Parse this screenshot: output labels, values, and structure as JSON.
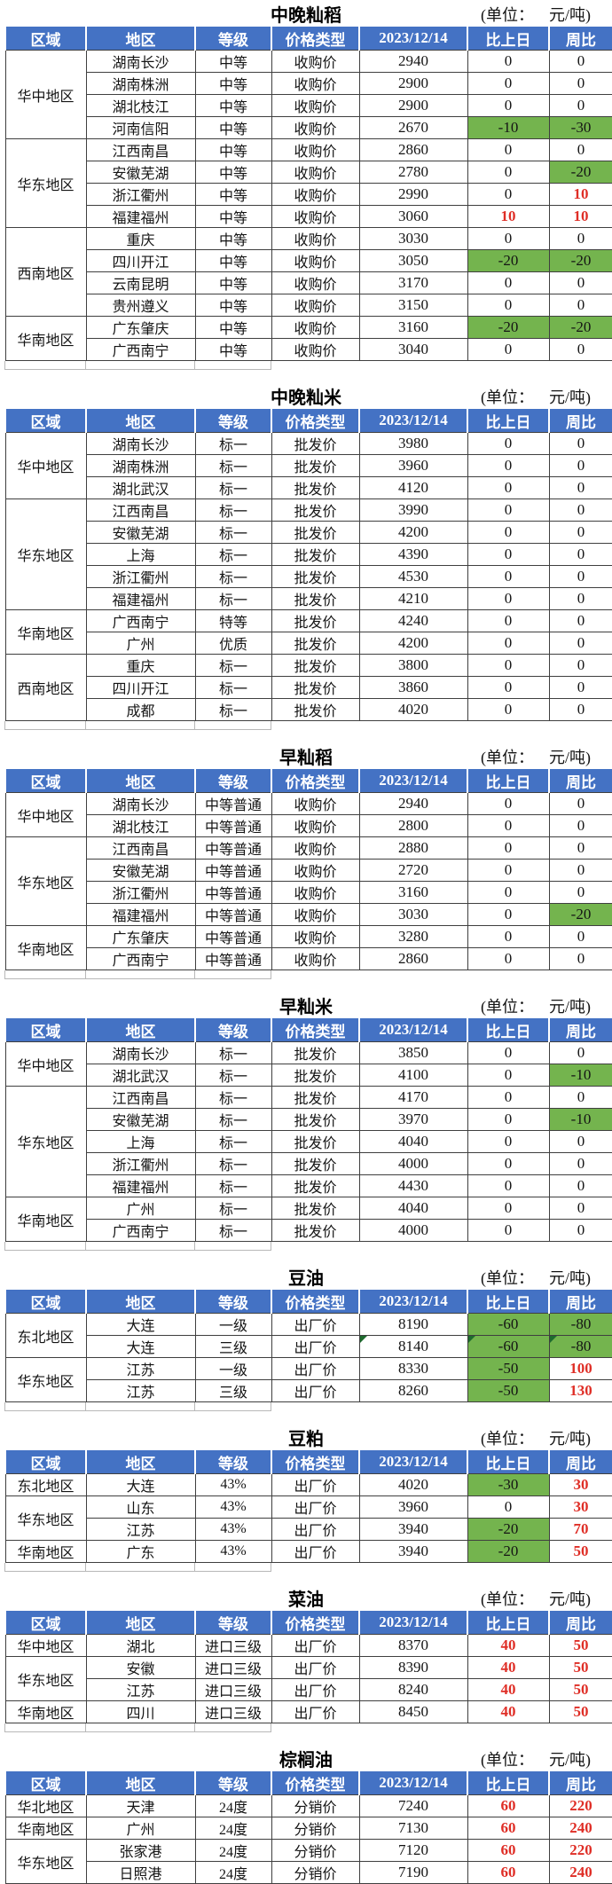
{
  "unit": {
    "prefix": "(单位：",
    "suffix": "元/吨)"
  },
  "columns": [
    "区域",
    "地区",
    "等级",
    "价格类型",
    "2023/12/14",
    "比上日",
    "周比"
  ],
  "colors": {
    "header_bg": "#4472c4",
    "header_text": "#ffffff",
    "green_cell_bg": "#74b44e",
    "red_text": "#df2e26",
    "grid_line": "#3f3f3f",
    "comment_mark": "#1e6b2e"
  },
  "tables": [
    {
      "title": "中晚籼稻",
      "groups": [
        {
          "region": "华中地区",
          "rows": [
            {
              "area": "湖南长沙",
              "grade": "中等",
              "type": "收购价",
              "price": "2940",
              "day": "0",
              "week": "0"
            },
            {
              "area": "湖南株洲",
              "grade": "中等",
              "type": "收购价",
              "price": "2900",
              "day": "0",
              "week": "0"
            },
            {
              "area": "湖北枝江",
              "grade": "中等",
              "type": "收购价",
              "price": "2900",
              "day": "0",
              "week": "0"
            },
            {
              "area": "河南信阳",
              "grade": "中等",
              "type": "收购价",
              "price": "2670",
              "day": "-10",
              "day_style": "green",
              "week": "-30",
              "week_style": "green"
            }
          ]
        },
        {
          "region": "华东地区",
          "rows": [
            {
              "area": "江西南昌",
              "grade": "中等",
              "type": "收购价",
              "price": "2860",
              "day": "0",
              "week": "0"
            },
            {
              "area": "安徽芜湖",
              "grade": "中等",
              "type": "收购价",
              "price": "2780",
              "day": "0",
              "week": "-20",
              "week_style": "green"
            },
            {
              "area": "浙江衢州",
              "grade": "中等",
              "type": "收购价",
              "price": "2990",
              "day": "0",
              "week": "10",
              "week_style": "red"
            },
            {
              "area": "福建福州",
              "grade": "中等",
              "type": "收购价",
              "price": "3060",
              "day": "10",
              "day_style": "red",
              "week": "10",
              "week_style": "red"
            }
          ]
        },
        {
          "region": "西南地区",
          "rows": [
            {
              "area": "重庆",
              "grade": "中等",
              "type": "收购价",
              "price": "3030",
              "day": "0",
              "week": "0"
            },
            {
              "area": "四川开江",
              "grade": "中等",
              "type": "收购价",
              "price": "3050",
              "day": "-20",
              "day_style": "green",
              "week": "-20",
              "week_style": "green"
            },
            {
              "area": "云南昆明",
              "grade": "中等",
              "type": "收购价",
              "price": "3170",
              "day": "0",
              "week": "0"
            },
            {
              "area": "贵州遵义",
              "grade": "中等",
              "type": "收购价",
              "price": "3150",
              "day": "0",
              "week": "0"
            }
          ]
        },
        {
          "region": "华南地区",
          "rows": [
            {
              "area": "广东肇庆",
              "grade": "中等",
              "type": "收购价",
              "price": "3160",
              "day": "-20",
              "day_style": "green",
              "week": "-20",
              "week_style": "green"
            },
            {
              "area": "广西南宁",
              "grade": "中等",
              "type": "收购价",
              "price": "3040",
              "day": "0",
              "week": "0"
            }
          ]
        }
      ]
    },
    {
      "title": "中晚籼米",
      "groups": [
        {
          "region": "华中地区",
          "rows": [
            {
              "area": "湖南长沙",
              "grade": "标一",
              "type": "批发价",
              "price": "3980",
              "day": "0",
              "week": "0"
            },
            {
              "area": "湖南株洲",
              "grade": "标一",
              "type": "批发价",
              "price": "3960",
              "day": "0",
              "week": "0"
            },
            {
              "area": "湖北武汉",
              "grade": "标一",
              "type": "批发价",
              "price": "4120",
              "day": "0",
              "week": "0"
            }
          ]
        },
        {
          "region": "华东地区",
          "rows": [
            {
              "area": "江西南昌",
              "grade": "标一",
              "type": "批发价",
              "price": "3990",
              "day": "0",
              "week": "0"
            },
            {
              "area": "安徽芜湖",
              "grade": "标一",
              "type": "批发价",
              "price": "4200",
              "day": "0",
              "week": "0"
            },
            {
              "area": "上海",
              "grade": "标一",
              "type": "批发价",
              "price": "4390",
              "day": "0",
              "week": "0"
            },
            {
              "area": "浙江衢州",
              "grade": "标一",
              "type": "批发价",
              "price": "4530",
              "day": "0",
              "week": "0"
            },
            {
              "area": "福建福州",
              "grade": "标一",
              "type": "批发价",
              "price": "4210",
              "day": "0",
              "week": "0"
            }
          ]
        },
        {
          "region": "华南地区",
          "rows": [
            {
              "area": "广西南宁",
              "grade": "特等",
              "type": "批发价",
              "price": "4240",
              "day": "0",
              "week": "0"
            },
            {
              "area": "广州",
              "grade": "优质",
              "type": "批发价",
              "price": "4200",
              "day": "0",
              "week": "0"
            }
          ]
        },
        {
          "region": "西南地区",
          "rows": [
            {
              "area": "重庆",
              "grade": "标一",
              "type": "批发价",
              "price": "3800",
              "day": "0",
              "week": "0"
            },
            {
              "area": "四川开江",
              "grade": "标一",
              "type": "批发价",
              "price": "3860",
              "day": "0",
              "week": "0"
            },
            {
              "area": "成都",
              "grade": "标一",
              "type": "批发价",
              "price": "4020",
              "day": "0",
              "week": "0"
            }
          ]
        }
      ]
    },
    {
      "title": "早籼稻",
      "groups": [
        {
          "region": "华中地区",
          "rows": [
            {
              "area": "湖南长沙",
              "grade": "中等普通",
              "type": "收购价",
              "price": "2940",
              "day": "0",
              "week": "0"
            },
            {
              "area": "湖北枝江",
              "grade": "中等普通",
              "type": "收购价",
              "price": "2800",
              "day": "0",
              "week": "0"
            }
          ]
        },
        {
          "region": "华东地区",
          "rows": [
            {
              "area": "江西南昌",
              "grade": "中等普通",
              "type": "收购价",
              "price": "2880",
              "day": "0",
              "week": "0"
            },
            {
              "area": "安徽芜湖",
              "grade": "中等普通",
              "type": "收购价",
              "price": "2720",
              "day": "0",
              "week": "0"
            },
            {
              "area": "浙江衢州",
              "grade": "中等普通",
              "type": "收购价",
              "price": "3160",
              "day": "0",
              "week": "0"
            },
            {
              "area": "福建福州",
              "grade": "中等普通",
              "type": "收购价",
              "price": "3030",
              "day": "0",
              "week": "-20",
              "week_style": "green"
            }
          ]
        },
        {
          "region": "华南地区",
          "rows": [
            {
              "area": "广东肇庆",
              "grade": "中等普通",
              "type": "收购价",
              "price": "3280",
              "day": "0",
              "week": "0"
            },
            {
              "area": "广西南宁",
              "grade": "中等普通",
              "type": "收购价",
              "price": "2860",
              "day": "0",
              "week": "0"
            }
          ]
        }
      ]
    },
    {
      "title": "早籼米",
      "groups": [
        {
          "region": "华中地区",
          "rows": [
            {
              "area": "湖南长沙",
              "grade": "标一",
              "type": "批发价",
              "price": "3850",
              "day": "0",
              "week": "0"
            },
            {
              "area": "湖北武汉",
              "grade": "标一",
              "type": "批发价",
              "price": "4100",
              "day": "0",
              "week": "-10",
              "week_style": "green"
            }
          ]
        },
        {
          "region": "华东地区",
          "rows": [
            {
              "area": "江西南昌",
              "grade": "标一",
              "type": "批发价",
              "price": "4170",
              "day": "0",
              "week": "0"
            },
            {
              "area": "安徽芜湖",
              "grade": "标一",
              "type": "批发价",
              "price": "3970",
              "day": "0",
              "week": "-10",
              "week_style": "green"
            },
            {
              "area": "上海",
              "grade": "标一",
              "type": "批发价",
              "price": "4040",
              "day": "0",
              "week": "0"
            },
            {
              "area": "浙江衢州",
              "grade": "标一",
              "type": "批发价",
              "price": "4000",
              "day": "0",
              "week": "0"
            },
            {
              "area": "福建福州",
              "grade": "标一",
              "type": "批发价",
              "price": "4430",
              "day": "0",
              "week": "0"
            }
          ]
        },
        {
          "region": "华南地区",
          "rows": [
            {
              "area": "广州",
              "grade": "标一",
              "type": "批发价",
              "price": "4040",
              "day": "0",
              "week": "0"
            },
            {
              "area": "广西南宁",
              "grade": "标一",
              "type": "批发价",
              "price": "4000",
              "day": "0",
              "week": "0"
            }
          ]
        }
      ]
    },
    {
      "title": "豆油",
      "groups": [
        {
          "region": "东北地区",
          "rows": [
            {
              "area": "大连",
              "grade": "一级",
              "type": "出厂价",
              "price": "8190",
              "day": "-60",
              "day_style": "green",
              "week": "-80",
              "week_style": "green"
            },
            {
              "area": "大连",
              "grade": "三级",
              "type": "出厂价",
              "price": "8140",
              "day": "-60",
              "day_style": "green",
              "week": "-80",
              "week_style": "green",
              "marks": [
                "price",
                "day",
                "week"
              ]
            }
          ]
        },
        {
          "region": "华东地区",
          "rows": [
            {
              "area": "江苏",
              "grade": "一级",
              "type": "出厂价",
              "price": "8330",
              "day": "-50",
              "day_style": "green",
              "week": "100",
              "week_style": "red"
            },
            {
              "area": "江苏",
              "grade": "三级",
              "type": "出厂价",
              "price": "8260",
              "day": "-50",
              "day_style": "green",
              "week": "130",
              "week_style": "red"
            }
          ]
        }
      ]
    },
    {
      "title": "豆粕",
      "groups": [
        {
          "region": "东北地区",
          "rows": [
            {
              "area": "大连",
              "grade": "43%",
              "type": "出厂价",
              "price": "4020",
              "day": "-30",
              "day_style": "green",
              "week": "30",
              "week_style": "red"
            }
          ]
        },
        {
          "region": "华东地区",
          "rows": [
            {
              "area": "山东",
              "grade": "43%",
              "type": "出厂价",
              "price": "3960",
              "day": "0",
              "week": "30",
              "week_style": "red"
            },
            {
              "area": "江苏",
              "grade": "43%",
              "type": "出厂价",
              "price": "3940",
              "day": "-20",
              "day_style": "green",
              "week": "70",
              "week_style": "red"
            }
          ]
        },
        {
          "region": "华南地区",
          "rows": [
            {
              "area": "广东",
              "grade": "43%",
              "type": "出厂价",
              "price": "3940",
              "day": "-20",
              "day_style": "green",
              "week": "50",
              "week_style": "red"
            }
          ]
        }
      ]
    },
    {
      "title": "菜油",
      "groups": [
        {
          "region": "华中地区",
          "rows": [
            {
              "area": "湖北",
              "grade": "进口三级",
              "type": "出厂价",
              "price": "8370",
              "day": "40",
              "day_style": "red",
              "week": "50",
              "week_style": "red"
            }
          ]
        },
        {
          "region": "华东地区",
          "rows": [
            {
              "area": "安徽",
              "grade": "进口三级",
              "type": "出厂价",
              "price": "8390",
              "day": "40",
              "day_style": "red",
              "week": "50",
              "week_style": "red"
            },
            {
              "area": "江苏",
              "grade": "进口三级",
              "type": "出厂价",
              "price": "8240",
              "day": "40",
              "day_style": "red",
              "week": "50",
              "week_style": "red"
            }
          ]
        },
        {
          "region": "华南地区",
          "rows": [
            {
              "area": "四川",
              "grade": "进口三级",
              "type": "出厂价",
              "price": "8450",
              "day": "40",
              "day_style": "red",
              "week": "50",
              "week_style": "red"
            }
          ]
        }
      ]
    },
    {
      "title": "棕榈油",
      "groups": [
        {
          "region": "华北地区",
          "rows": [
            {
              "area": "天津",
              "grade": "24度",
              "type": "分销价",
              "price": "7240",
              "day": "60",
              "day_style": "red",
              "week": "220",
              "week_style": "red"
            }
          ]
        },
        {
          "region": "华南地区",
          "rows": [
            {
              "area": "广州",
              "grade": "24度",
              "type": "分销价",
              "price": "7130",
              "day": "60",
              "day_style": "red",
              "week": "240",
              "week_style": "red"
            }
          ]
        },
        {
          "region": "华东地区",
          "rows": [
            {
              "area": "张家港",
              "grade": "24度",
              "type": "分销价",
              "price": "7120",
              "day": "60",
              "day_style": "red",
              "week": "220",
              "week_style": "red"
            },
            {
              "area": "日照港",
              "grade": "24度",
              "type": "分销价",
              "price": "7190",
              "day": "60",
              "day_style": "red",
              "week": "240",
              "week_style": "red"
            }
          ]
        }
      ]
    }
  ]
}
